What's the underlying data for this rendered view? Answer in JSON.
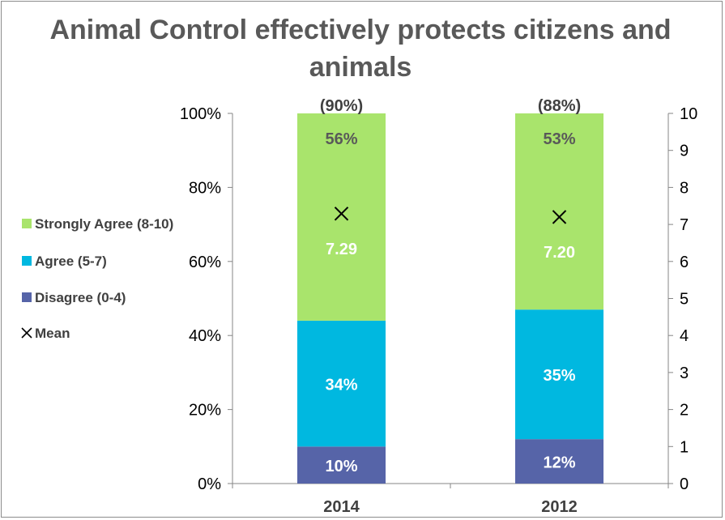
{
  "chart_data": {
    "type": "bar",
    "stacked": true,
    "title": "Animal Control effectively protects citizens and animals",
    "categories": [
      "2014",
      "2012"
    ],
    "series": [
      {
        "name": "Disagree (0-4)",
        "values": [
          10,
          12
        ],
        "labels": [
          "10%",
          "12%"
        ],
        "color": "#5664a8",
        "label_color": "#ffffff"
      },
      {
        "name": "Agree (5-7)",
        "values": [
          34,
          35
        ],
        "labels": [
          "34%",
          "35%"
        ],
        "color": "#00b8e0",
        "label_color": "#ffffff"
      },
      {
        "name": "Strongly Agree (8-10)",
        "values": [
          56,
          53
        ],
        "labels": [
          "56%",
          "53%"
        ],
        "color": "#a9e46c",
        "label_color": "#595959"
      }
    ],
    "mean": {
      "name": "Mean",
      "values": [
        7.29,
        7.2
      ],
      "labels": [
        "7.29",
        "7.20"
      ]
    },
    "top_labels": [
      "(90%)",
      "(88%)"
    ],
    "y_left": {
      "ylim": [
        0,
        100
      ],
      "ticks": [
        "0%",
        "20%",
        "40%",
        "60%",
        "80%",
        "100%"
      ]
    },
    "y_right": {
      "ylim": [
        0,
        10
      ],
      "ticks": [
        "0",
        "1",
        "2",
        "3",
        "4",
        "5",
        "6",
        "7",
        "8",
        "9",
        "10"
      ]
    },
    "legend_position": "left",
    "legend_order": [
      "Strongly Agree (8-10)",
      "Agree (5-7)",
      "Disagree (0-4)",
      "Mean"
    ],
    "grid": false
  }
}
